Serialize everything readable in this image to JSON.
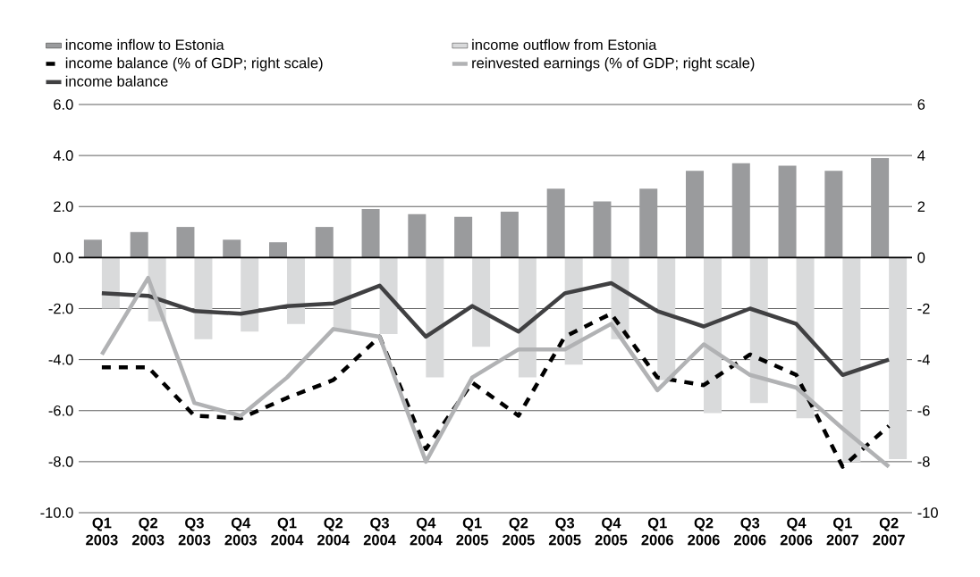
{
  "chart_data": {
    "type": "bar",
    "categories": [
      "Q1 2003",
      "Q2 2003",
      "Q3 2003",
      "Q4 2003",
      "Q1 2004",
      "Q2 2004",
      "Q3 2004",
      "Q4 2004",
      "Q1 2005",
      "Q2 2005",
      "Q3 2005",
      "Q4 2005",
      "Q1 2006",
      "Q2 2006",
      "Q3 2006",
      "Q4 2006",
      "Q1 2007",
      "Q2 2007"
    ],
    "series": [
      {
        "name": "income inflow to Estonia",
        "color": "#9a9b9d",
        "values": [
          0.7,
          1.0,
          1.2,
          0.7,
          0.6,
          1.2,
          1.9,
          1.7,
          1.6,
          1.8,
          2.7,
          2.2,
          2.7,
          3.4,
          3.7,
          3.6,
          3.4,
          3.9
        ]
      },
      {
        "name": "income outflow from Estonia",
        "color": "#d9dadb",
        "values": [
          -2.0,
          -2.5,
          -3.2,
          -2.9,
          -2.6,
          -2.9,
          -3.0,
          -4.7,
          -3.5,
          -4.7,
          -4.2,
          -3.2,
          -4.8,
          -6.1,
          -5.7,
          -6.3,
          -8.0,
          -7.9
        ]
      },
      {
        "name": "income balance (% of GDP; right scale)",
        "type": "line",
        "axis": "y2",
        "line_style": "dashed",
        "color": "#000000",
        "values": [
          -4.3,
          -4.3,
          -6.2,
          -6.3,
          -5.5,
          -4.8,
          -3.1,
          -7.5,
          -4.9,
          -6.2,
          -3.1,
          -2.2,
          -4.7,
          -5.0,
          -3.8,
          -4.6,
          -8.2,
          -6.6
        ]
      },
      {
        "name": "reinvested earnings (% of GDP; right scale)",
        "type": "line",
        "axis": "y2",
        "line_style": "solid",
        "color": "#b1b2b4",
        "values": [
          -3.8,
          -0.8,
          -5.7,
          -6.2,
          -4.7,
          -2.8,
          -3.1,
          -8.0,
          -4.7,
          -3.6,
          -3.6,
          -2.6,
          -5.2,
          -3.4,
          -4.6,
          -5.1,
          -6.7,
          -8.2
        ]
      },
      {
        "name": "income balance",
        "type": "line",
        "line_style": "solid",
        "color": "#404042",
        "values": [
          -1.4,
          -1.5,
          -2.1,
          -2.2,
          -1.9,
          -1.8,
          -1.1,
          -3.1,
          -1.9,
          -2.9,
          -1.4,
          -1.0,
          -2.1,
          -2.7,
          -2.0,
          -2.6,
          -4.6,
          -4.0
        ]
      }
    ],
    "ylim": [
      -10,
      6
    ],
    "yticks": [
      {
        "value": -10,
        "label": "-10.0"
      },
      {
        "value": -8,
        "label": "-8.0"
      },
      {
        "value": -6,
        "label": "-6.0"
      },
      {
        "value": -4,
        "label": "-4.0"
      },
      {
        "value": -2,
        "label": "-2.0"
      },
      {
        "value": 0,
        "label": "0.0"
      },
      {
        "value": 2,
        "label": "2.0"
      },
      {
        "value": 4,
        "label": "4.0"
      },
      {
        "value": 6,
        "label": "6.0"
      }
    ],
    "y2lim": [
      -10,
      6
    ],
    "y2ticks": [
      -10,
      -8,
      -6,
      -4,
      -2,
      0,
      2,
      4,
      6
    ],
    "grid": "y",
    "legend": "top"
  }
}
